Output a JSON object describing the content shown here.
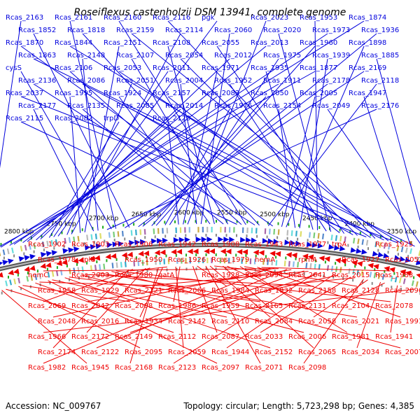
{
  "title": "Roseiflexus castenholzii DSM 13941, complete genome",
  "accession": "Accession: NC_009767",
  "info": "Topology: circular; Length: 5,723,298 bp; Genes: 4,385",
  "colors": {
    "forward": "#0000dd",
    "reverse": "#ee0000",
    "backbone": "#888888",
    "dots": "#22aa22"
  },
  "ticks": [
    "2350 kbp",
    "2400 kbp",
    "2450 kbp",
    "2500 kbp",
    "2550 kbp",
    "2600 kbp",
    "2650 kbp",
    "2700 kbp",
    "2750 kbp",
    "2800 kbp"
  ],
  "forward_labels": [
    "Rcas_2163",
    "Rcas_2161",
    "Rcas_2160",
    "Rcas_2116",
    "pgk",
    "Rcas_2023",
    "Rcas_1953",
    "Rcas_1874",
    "Rcas_1852",
    "Rcas_1818",
    "Rcas_2159",
    "Rcas_2114",
    "Rcas_2060",
    "Rcas_2020",
    "Rcas_1973",
    "Rcas_1936",
    "Rcas_1870",
    "Rcas_1844",
    "Rcas_2151",
    "Rcas_2108",
    "Rcas_2055",
    "Rcas_2013",
    "Rcas_1960",
    "Rcas_1898",
    "Rcas_1863",
    "Rcas_2148",
    "Rcas_2107",
    "Rcas_2054",
    "Rcas_2012",
    "Rcas_1975",
    "Rcas_1939",
    "Rcas_1885",
    "cysS",
    "Rcas_2106",
    "Rcas_2053",
    "Rcas_2011",
    "Rcas_1971",
    "Rcas_1935",
    "Rcas_1877",
    "Rcas_2169",
    "Rcas_2136",
    "Rcas_2086",
    "Rcas_2051",
    "Rcas_2004",
    "Rcas_1952",
    "Rcas_1911",
    "Rcas_2178",
    "Rcas_2118",
    "Rcas_2037",
    "Rcas_1995",
    "Rcas_1924",
    "Rcas_2157",
    "Rcas_2083",
    "Rcas_2050",
    "Rcas_2005",
    "Rcas_1947",
    "Rcas_2177",
    "Rcas_2135",
    "Rcas_2085",
    "Rcas_2014",
    "Rcas_1976",
    "Rcas_2154",
    "Rcas_2049",
    "Rcas_2176",
    "Rcas_2115",
    "Rcas_2082",
    "trpD",
    "Rcas_2120"
  ],
  "reverse_labels": [
    "Rcas_1902",
    "Rcas_1903",
    "Rcas_1906",
    "Rcas_1942",
    "Rcas_1908",
    "Rcas_1943",
    "Rcas_1977",
    "trpA",
    "Rcas_1925",
    "Rcas_1978",
    "rplU",
    "Rcas_1950",
    "Rcas_1926",
    "Rcas_1979",
    "hemA",
    "rpmA",
    "Rcas_1927",
    "Rcas_2052",
    "hemC",
    "Rcas_2003",
    "Rcas_1980",
    "gatA",
    "Rcas_1928",
    "Rcas_2094",
    "Rcas_2041",
    "Rcas_2015",
    "Rcas_1983",
    "Rcas_1958",
    "Rcas_1929",
    "Rcas_2121",
    "Rcas_2066",
    "Rcas_1984",
    "Rcas_1932",
    "Rcas_2158",
    "Rcas_2128",
    "Rcas_2096",
    "Rcas_2069",
    "Rcas_2042",
    "Rcas_2008",
    "Rcas_1986",
    "Rcas_1959",
    "Rcas_2165",
    "Rcas_2131",
    "Rcas_2104",
    "Rcas_2078",
    "Rcas_2048",
    "Rcas_2016",
    "Rcas_1934",
    "Rcas_2142",
    "Rcas_2110",
    "Rcas_2084",
    "Rcas_2058",
    "Rcas_2021",
    "Rcas_1991",
    "Rcas_1966",
    "Rcas_2172",
    "Rcas_2149",
    "Rcas_2112",
    "Rcas_2087",
    "Rcas_2033",
    "Rcas_2006",
    "Rcas_1981",
    "Rcas_1941",
    "Rcas_2174",
    "Rcas_2122",
    "Rcas_2095",
    "Rcas_2059",
    "Rcas_1944",
    "Rcas_2152",
    "Rcas_2065",
    "Rcas_2034",
    "Rcas_2007",
    "Rcas_1982",
    "Rcas_1945",
    "Rcas_2168",
    "Rcas_2123",
    "Rcas_2097",
    "Rcas_2071",
    "Rcas_2098"
  ]
}
